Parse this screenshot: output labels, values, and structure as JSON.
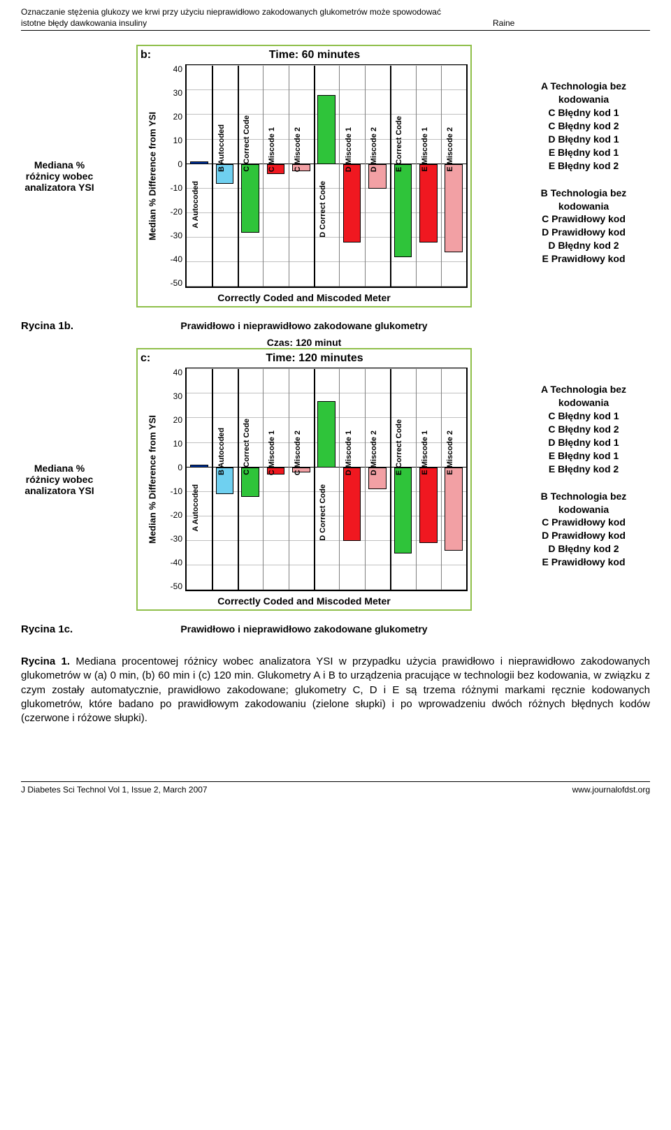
{
  "header": {
    "left": "Oznaczanie stężenia glukozy we krwi przy użyciu nieprawidłowo zakodowanych glukometrów może spowodować istotne błędy dawkowania insuliny",
    "right": "Raine"
  },
  "ylabel_text": "Mediana % różnicy wobec analizatora YSI",
  "legend": {
    "groupA": [
      "A Technologia bez kodowania",
      "C Błędny kod 1",
      "C Błędny kod 2",
      "D Błędny kod 1",
      "E Błędny kod 1",
      "E Błędny kod 2"
    ],
    "groupB": [
      "B Technologia bez kodowania",
      "C Prawidłowy kod",
      "D Prawidłowy kod",
      "D Błędny kod 2",
      "E Prawidłowy kod"
    ]
  },
  "chart_common": {
    "ylabel": "Median % Difference from YSI",
    "xlabel": "Correctly Coded and Miscoded Meter",
    "ylim": [
      -50,
      40
    ],
    "ytick_step": 10,
    "yticks_labels": [
      "40",
      "30",
      "20",
      "10",
      "0",
      "-10",
      "-20",
      "-30",
      "-40",
      "-50"
    ],
    "colors": {
      "blue": "#0033a0",
      "cyan": "#6fd0f0",
      "green": "#2fc43a",
      "red": "#f01820",
      "pink": "#f2a0a4",
      "border": "#000000",
      "frame": "#8fbf4a",
      "grid": "#c0c0c0"
    },
    "panels": [
      {
        "width_pct": 9.1,
        "cols": [
          {
            "label": "A Autocoded",
            "color": "blue"
          }
        ]
      },
      {
        "width_pct": 9.1,
        "cols": [
          {
            "label": "B Autocoded",
            "color": "cyan"
          }
        ]
      },
      {
        "width_pct": 27.3,
        "cols": [
          {
            "label": "C Correct Code",
            "color": "green"
          },
          {
            "label": "C Miscode 1",
            "color": "red"
          },
          {
            "label": "C Miscode 2",
            "color": "pink"
          }
        ]
      },
      {
        "width_pct": 27.3,
        "cols": [
          {
            "label": "D Correct Code",
            "color": "green"
          },
          {
            "label": "D Miscode 1",
            "color": "red"
          },
          {
            "label": "D Miscode 2",
            "color": "pink"
          }
        ]
      },
      {
        "width_pct": 27.3,
        "cols": [
          {
            "label": "E Correct Code",
            "color": "green"
          },
          {
            "label": "E Miscode 1",
            "color": "red"
          },
          {
            "label": "E Miscode 2",
            "color": "pink"
          }
        ]
      }
    ]
  },
  "charts": [
    {
      "subplot": "b:",
      "time": "Time: 60 minutes",
      "values": [
        1,
        -8,
        -28,
        -4,
        -3,
        28,
        -32,
        -10,
        -38,
        -32,
        -36
      ]
    },
    {
      "subplot": "c:",
      "time": "Time: 120 minutes",
      "values": [
        1,
        -11,
        -12,
        -3,
        -2,
        27,
        -30,
        -9,
        -35,
        -31,
        -34
      ]
    }
  ],
  "fig_tags": {
    "b": "Rycina 1b.",
    "c": "Rycina 1c.",
    "xlabel_polish": "Prawidłowo i nieprawidłowo zakodowane glukometry",
    "time_c": "Czas: 120 minut"
  },
  "caption": {
    "lead": "Rycina 1.",
    "body": " Mediana procentowej różnicy wobec analizatora YSI w przypadku użycia prawidłowo i nieprawidłowo zakodowanych glukometrów w (a) 0 min, (b) 60 min i (c) 120 min. Glukometry A i B to urządzenia pracujące w technologii bez kodowania, w związku z czym zostały automatycznie, prawidłowo zakodowane; glukometry C, D i E są trzema różnymi markami ręcznie kodowanych glukometrów, które badano po prawidłowym zakodowaniu (zielone słupki) i po wprowadzeniu dwóch różnych błędnych kodów (czerwone i różowe słupki)."
  },
  "footer": {
    "left": "J Diabetes Sci Technol Vol 1, Issue 2, March 2007",
    "right": "www.journalofdst.org"
  }
}
